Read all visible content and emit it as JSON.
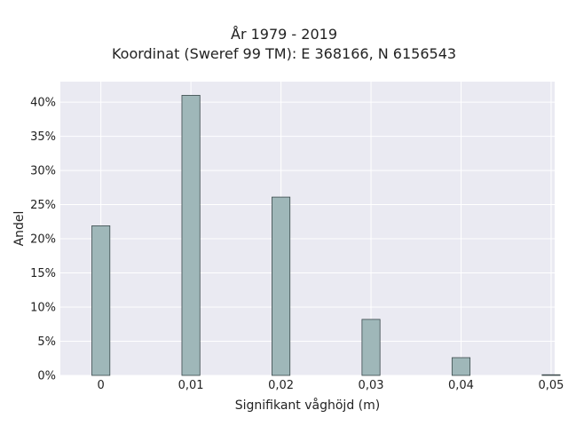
{
  "chart_data": {
    "type": "bar",
    "title": "År 1979 - 2019",
    "subtitle": "Koordinat (Sweref 99 TM): E 368166, N 6156543",
    "xlabel": "Signifikant våghöjd (m)",
    "ylabel": "Andel",
    "x": [
      0,
      0.01,
      0.02,
      0.03,
      0.04,
      0.05
    ],
    "values": [
      0.219,
      0.41,
      0.261,
      0.082,
      0.026,
      0.001
    ],
    "xlim": [
      -0.0045,
      0.0504
    ],
    "ylim": [
      0,
      0.43
    ],
    "xticks": [
      0,
      0.01,
      0.02,
      0.03,
      0.04,
      0.05
    ],
    "xtick_labels": [
      "0",
      "0,01",
      "0,02",
      "0,03",
      "0,04",
      "0,05"
    ],
    "yticks": [
      0,
      0.05,
      0.1,
      0.15,
      0.2,
      0.25,
      0.3,
      0.35,
      0.4
    ],
    "ytick_labels": [
      "0%",
      "5%",
      "10%",
      "15%",
      "20%",
      "25%",
      "30%",
      "35%",
      "40%"
    ],
    "bar_width": 0.002,
    "grid": true,
    "colors": {
      "bar": "#9fb7b9",
      "bar_edge": "#3b4a4c",
      "background": "#eaeaf2",
      "grid": "#ffffff"
    }
  }
}
